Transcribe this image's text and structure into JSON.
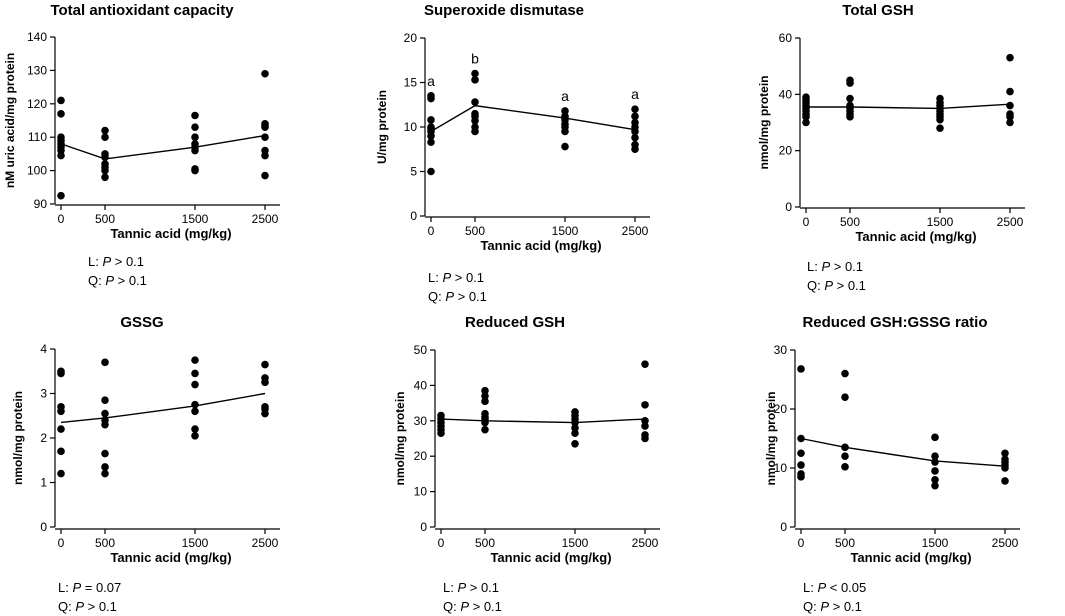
{
  "chart_data": [
    {
      "type": "scatter",
      "title": "Total antioxidant capacity",
      "xlabel": "Tannic acid (mg/kg)",
      "ylabel": "nM uric acid/mg protein",
      "categories": [
        "0",
        "500",
        "1500",
        "2500"
      ],
      "x": [
        0,
        500,
        1500,
        2500
      ],
      "ylim": [
        90,
        140
      ],
      "yticks": [
        90,
        100,
        110,
        120,
        130,
        140
      ],
      "points": [
        [
          92.5,
          104.5,
          106,
          107,
          108,
          109,
          110,
          117,
          121
        ],
        [
          98,
          100,
          101,
          102,
          104,
          105,
          110,
          112
        ],
        [
          100,
          100.5,
          106,
          107,
          108,
          110,
          113,
          116.5
        ],
        [
          98.5,
          104.5,
          106,
          110,
          113,
          113.5,
          114,
          129
        ]
      ],
      "fit": [
        108,
        103.5,
        107,
        110.5
      ],
      "letters": [],
      "stats": [
        {
          "label": "L: ",
          "p": "P",
          "rel": " > 0.1"
        },
        {
          "label": "Q: ",
          "p": "P",
          "rel": " > 0.1"
        }
      ]
    },
    {
      "type": "scatter",
      "title": "Superoxide dismutase",
      "xlabel": "Tannic acid (mg/kg)",
      "ylabel": "U/mg protein",
      "categories": [
        "0",
        "500",
        "1500",
        "2500"
      ],
      "x": [
        0,
        500,
        1500,
        2500
      ],
      "ylim": [
        0,
        20
      ],
      "yticks": [
        0,
        5,
        10,
        15,
        20
      ],
      "points": [
        [
          5,
          8.3,
          9,
          9.5,
          9.8,
          10,
          10.8,
          13.2,
          13.5
        ],
        [
          9.5,
          10,
          10.7,
          11.2,
          11.5,
          12.8,
          15.3,
          16
        ],
        [
          7.8,
          9.5,
          10,
          10.3,
          10.8,
          11,
          11.2,
          11.8
        ],
        [
          7.5,
          8,
          8.8,
          9.5,
          10,
          10.5,
          11.2,
          12
        ]
      ],
      "fit": [
        9.5,
        12.4,
        11,
        9.7
      ],
      "letters": [
        "a",
        "b",
        "a",
        "a"
      ],
      "stats": [
        {
          "label": "L: ",
          "p": "P",
          "rel": " > 0.1"
        },
        {
          "label": "Q: ",
          "p": "P",
          "rel": " > 0.1"
        }
      ]
    },
    {
      "type": "scatter",
      "title": "Total GSH",
      "xlabel": "Tannic acid (mg/kg)",
      "ylabel": "nmol/mg protein",
      "categories": [
        "0",
        "500",
        "1500",
        "2500"
      ],
      "x": [
        0,
        500,
        1500,
        2500
      ],
      "ylim": [
        0,
        60
      ],
      "yticks": [
        0,
        20,
        40,
        60
      ],
      "points": [
        [
          30,
          32,
          33,
          34,
          35,
          36,
          37,
          38,
          39
        ],
        [
          32,
          33,
          34,
          35,
          36,
          38.5,
          44,
          45
        ],
        [
          28,
          31,
          32,
          33,
          34,
          35,
          36,
          37,
          38.5
        ],
        [
          30,
          32,
          33,
          36,
          41,
          53
        ]
      ],
      "fit": [
        35.5,
        35.5,
        35,
        36.5
      ],
      "letters": [],
      "stats": [
        {
          "label": "L: ",
          "p": "P",
          "rel": " > 0.1"
        },
        {
          "label": "Q: ",
          "p": "P",
          "rel": " > 0.1"
        }
      ]
    },
    {
      "type": "scatter",
      "title": "GSSG",
      "xlabel": "Tannic acid (mg/kg)",
      "ylabel": "nmol/mg protein",
      "categories": [
        "0",
        "500",
        "1500",
        "2500"
      ],
      "x": [
        0,
        500,
        1500,
        2500
      ],
      "ylim": [
        0,
        4
      ],
      "yticks": [
        0,
        1,
        2,
        3,
        4
      ],
      "points": [
        [
          1.2,
          1.7,
          2.2,
          2.6,
          2.7,
          3.45,
          3.5
        ],
        [
          1.2,
          1.35,
          1.65,
          2.3,
          2.4,
          2.55,
          2.85,
          3.7
        ],
        [
          2.05,
          2.2,
          2.6,
          2.75,
          3.2,
          3.45,
          3.75
        ],
        [
          2.55,
          2.65,
          2.7,
          3.25,
          3.35,
          3.65
        ]
      ],
      "fit": [
        2.35,
        2.45,
        2.72,
        3.0
      ],
      "letters": [],
      "stats": [
        {
          "label": "L: ",
          "p": "P",
          "rel": " = 0.07"
        },
        {
          "label": "Q: ",
          "p": "P",
          "rel": " > 0.1"
        }
      ]
    },
    {
      "type": "scatter",
      "title": "Reduced GSH",
      "xlabel": "Tannic acid (mg/kg)",
      "ylabel": "nmol/mg protein",
      "categories": [
        "0",
        "500",
        "1500",
        "2500"
      ],
      "x": [
        0,
        500,
        1500,
        2500
      ],
      "ylim": [
        0,
        50
      ],
      "yticks": [
        0,
        10,
        20,
        30,
        40,
        50
      ],
      "points": [
        [
          26.5,
          27.5,
          28.5,
          29.5,
          30.5,
          31.5
        ],
        [
          27.5,
          29.5,
          30.5,
          31,
          32,
          35.5,
          37,
          38.5
        ],
        [
          23.5,
          26.5,
          28,
          29.5,
          30.5,
          31.5,
          32.5
        ],
        [
          25,
          26,
          28.5,
          30,
          34.5,
          46
        ]
      ],
      "fit": [
        30.5,
        30,
        29.5,
        30.5
      ],
      "letters": [],
      "stats": [
        {
          "label": "L: ",
          "p": "P",
          "rel": " > 0.1"
        },
        {
          "label": "Q: ",
          "p": "P",
          "rel": " > 0.1"
        }
      ]
    },
    {
      "type": "scatter",
      "title": "Reduced GSH:GSSG ratio",
      "xlabel": "Tannic acid (mg/kg)",
      "ylabel": "nmol/mg protein",
      "categories": [
        "0",
        "500",
        "1500",
        "2500"
      ],
      "x": [
        0,
        500,
        1500,
        2500
      ],
      "ylim": [
        0,
        30
      ],
      "yticks": [
        0,
        10,
        20,
        30
      ],
      "points": [
        [
          8.5,
          9,
          10.5,
          12.5,
          15,
          26.8
        ],
        [
          10.2,
          12,
          13.5,
          22,
          26
        ],
        [
          7,
          8,
          9.5,
          11,
          12,
          15.2
        ],
        [
          7.8,
          10,
          10.5,
          11,
          11.5,
          12.5
        ]
      ],
      "fit": [
        15,
        13.5,
        11.2,
        10.3
      ],
      "letters": [],
      "stats": [
        {
          "label": "L: ",
          "p": "P",
          "rel": " < 0.05"
        },
        {
          "label": "Q: ",
          "p": "P",
          "rel": " > 0.1"
        }
      ]
    }
  ]
}
